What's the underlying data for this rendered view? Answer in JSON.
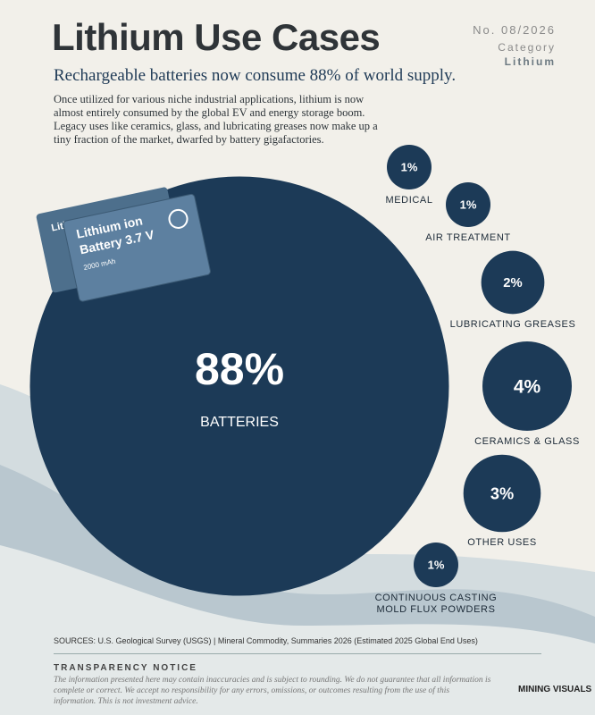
{
  "header": {
    "issue": "No. 08/2026",
    "category_label": "Category",
    "category": "Lithium",
    "description": "Once utilized for various niche industrial applications, lithium is now almost entirely consumed by the global EV and energy storage boom. Legacy uses like ceramics, glass, and lubricating greases now make up a tiny fraction of the market, dwarfed by battery gigafactories."
  },
  "image_text": [
    "Lithium ion",
    "Lithium ion",
    "Battery 3.7 V",
    "2000 mAh"
  ],
  "chart_data": {
    "type": "bubble",
    "title": "Lithium Use Cases",
    "subtitle": "Rechargeable batteries now consume 88% of world supply.",
    "categories": [
      "BATTERIES",
      "MEDICAL",
      "AIR TREATMENT",
      "LUBRICATING GREASES",
      "CERAMICS & GLASS",
      "OTHER USES",
      "CONTINUOUS CASTING MOLD FLUX POWDERS"
    ],
    "values": [
      88,
      1,
      1,
      2,
      4,
      3,
      1
    ],
    "value_labels": [
      "88%",
      "1%",
      "1%",
      "2%",
      "4%",
      "3%",
      "1%"
    ],
    "color": "#1c3a57"
  },
  "footer": {
    "sources": "SOURCES: U.S. Geological Survey (USGS) | Mineral Commodity, Summaries 2026 (Estimated 2025 Global End Uses)",
    "notice_title": "TRANSPARENCY NOTICE",
    "notice": "The information presented here may contain inaccuracies and is subject to rounding. We do not guarantee that all information is complete or correct. We accept no responsibility for any errors, omissions, or outcomes resulting from the use of this information. This is not investment advice.",
    "logo": "MINING VISUALS"
  }
}
